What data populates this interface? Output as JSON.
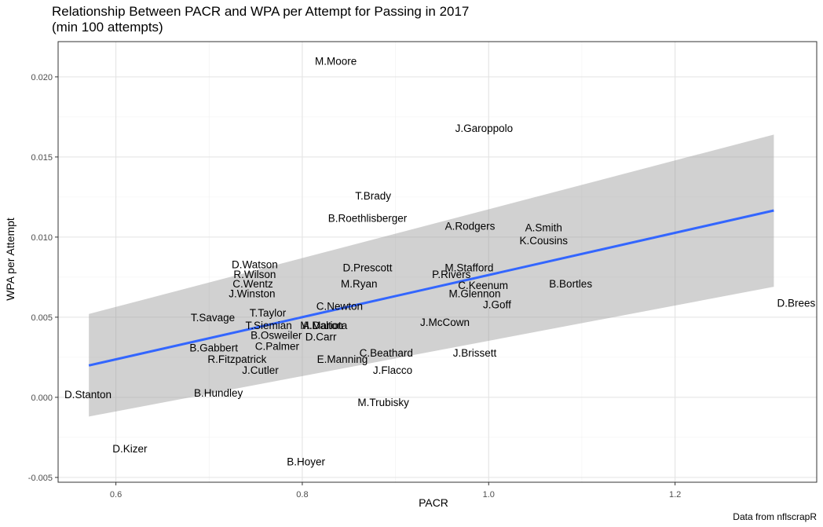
{
  "chart_data": {
    "type": "scatter",
    "title": "Relationship Between PACR and WPA per Attempt for Passing in 2017",
    "subtitle": "(min 100 attempts)",
    "xlabel": "PACR",
    "ylabel": "WPA per Attempt",
    "caption": "Data from nflscrapR",
    "xlim": [
      0.538,
      1.352
    ],
    "ylim": [
      -0.0053,
      0.0222
    ],
    "grid": true,
    "x_ticks": [
      {
        "value": 0.6,
        "label": "0.6"
      },
      {
        "value": 0.8,
        "label": "0.8"
      },
      {
        "value": 1.0,
        "label": "1.0"
      },
      {
        "value": 1.2,
        "label": "1.2"
      }
    ],
    "y_ticks": [
      {
        "value": -0.005,
        "label": "-0.005"
      },
      {
        "value": 0.0,
        "label": "0.000"
      },
      {
        "value": 0.005,
        "label": "0.005"
      },
      {
        "value": 0.01,
        "label": "0.010"
      },
      {
        "value": 0.015,
        "label": "0.015"
      },
      {
        "value": 0.02,
        "label": "0.020"
      }
    ],
    "trend": {
      "x": [
        0.571,
        1.306
      ],
      "y": [
        0.00199,
        0.01166
      ],
      "ci_lower": [
        -0.0012,
        0.0069
      ],
      "ci_upper": [
        0.0052,
        0.0164
      ],
      "line_color": "#3366ff",
      "band_color": "#999999"
    },
    "points": [
      {
        "label": "M.Moore",
        "x": 0.836,
        "y": 0.021
      },
      {
        "label": "J.Garoppolo",
        "x": 0.995,
        "y": 0.0168
      },
      {
        "label": "T.Brady",
        "x": 0.876,
        "y": 0.0126
      },
      {
        "label": "B.Roethlisberger",
        "x": 0.87,
        "y": 0.0112
      },
      {
        "label": "A.Rodgers",
        "x": 0.98,
        "y": 0.0107
      },
      {
        "label": "A.Smith",
        "x": 1.059,
        "y": 0.0106
      },
      {
        "label": "K.Cousins",
        "x": 1.059,
        "y": 0.0098
      },
      {
        "label": "D.Watson",
        "x": 0.749,
        "y": 0.0083
      },
      {
        "label": "D.Prescott",
        "x": 0.87,
        "y": 0.0081
      },
      {
        "label": "M.Stafford",
        "x": 0.979,
        "y": 0.0081
      },
      {
        "label": "R.Wilson",
        "x": 0.749,
        "y": 0.0077
      },
      {
        "label": "P.Rivers",
        "x": 0.96,
        "y": 0.0077
      },
      {
        "label": "C.Wentz",
        "x": 0.747,
        "y": 0.0071
      },
      {
        "label": "M.Ryan",
        "x": 0.861,
        "y": 0.0071
      },
      {
        "label": "C.Keenum",
        "x": 0.994,
        "y": 0.007
      },
      {
        "label": "B.Bortles",
        "x": 1.088,
        "y": 0.0071
      },
      {
        "label": "J.Winston",
        "x": 0.746,
        "y": 0.0065
      },
      {
        "label": "M.Glennon",
        "x": 0.985,
        "y": 0.0065
      },
      {
        "label": "C.Newton",
        "x": 0.84,
        "y": 0.0057
      },
      {
        "label": "J.Goff",
        "x": 1.009,
        "y": 0.0058
      },
      {
        "label": "D.Brees",
        "x": 1.33,
        "y": 0.0059
      },
      {
        "label": "T.Taylor",
        "x": 0.763,
        "y": 0.0053
      },
      {
        "label": "T.Savage",
        "x": 0.704,
        "y": 0.005
      },
      {
        "label": "T.Siemian",
        "x": 0.764,
        "y": 0.0045
      },
      {
        "label": "M.Mariota",
        "x": 0.823,
        "y": 0.0045
      },
      {
        "label": "A.Dalton",
        "x": 0.822,
        "y": 0.0045
      },
      {
        "label": "J.McCown",
        "x": 0.953,
        "y": 0.0047
      },
      {
        "label": "B.Osweiler",
        "x": 0.772,
        "y": 0.0039
      },
      {
        "label": "D.Carr",
        "x": 0.82,
        "y": 0.0038
      },
      {
        "label": "C.Palmer",
        "x": 0.773,
        "y": 0.0032
      },
      {
        "label": "B.Gabbert",
        "x": 0.705,
        "y": 0.0031
      },
      {
        "label": "C.Beathard",
        "x": 0.89,
        "y": 0.0028
      },
      {
        "label": "J.Brissett",
        "x": 0.985,
        "y": 0.0028
      },
      {
        "label": "R.Fitzpatrick",
        "x": 0.73,
        "y": 0.0024
      },
      {
        "label": "E.Manning",
        "x": 0.843,
        "y": 0.0024
      },
      {
        "label": "J.Cutler",
        "x": 0.755,
        "y": 0.0017
      },
      {
        "label": "J.Flacco",
        "x": 0.897,
        "y": 0.0017
      },
      {
        "label": "D.Stanton",
        "x": 0.57,
        "y": 0.0002
      },
      {
        "label": "B.Hundley",
        "x": 0.71,
        "y": 0.0003
      },
      {
        "label": "M.Trubisky",
        "x": 0.887,
        "y": -0.0003
      },
      {
        "label": "D.Kizer",
        "x": 0.615,
        "y": -0.0032
      },
      {
        "label": "B.Hoyer",
        "x": 0.804,
        "y": -0.004
      }
    ]
  }
}
